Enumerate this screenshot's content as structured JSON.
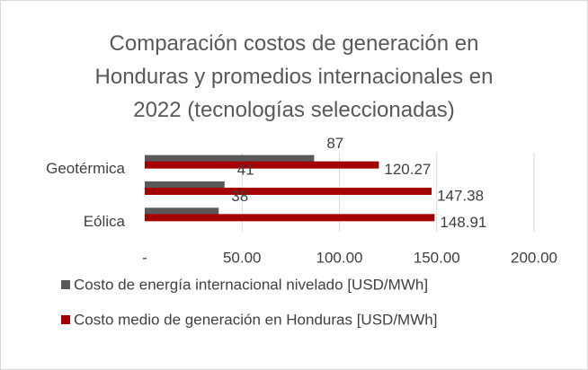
{
  "chart_data": {
    "type": "barh",
    "title": "Comparación costos de generación en Honduras y promedios internacionales en 2022 (tecnologías seleccionadas)",
    "categories": [
      "Geotérmica",
      null,
      "Eólica"
    ],
    "series": [
      {
        "name": "Costo de energía internacional nivelado [USD/MWh]",
        "color": "#595959",
        "values": [
          87,
          41,
          38
        ]
      },
      {
        "name": "Costo medio de generación en Honduras [USD/MWh]",
        "color": "#a50000",
        "values": [
          120.27,
          147.38,
          148.91
        ]
      }
    ],
    "xlim": [
      0,
      200
    ],
    "xticks": [
      {
        "value": 0,
        "label": "-"
      },
      {
        "value": 50,
        "label": "50.00"
      },
      {
        "value": 100,
        "label": "100.00"
      },
      {
        "value": 150,
        "label": "150.00"
      },
      {
        "value": 200,
        "label": "200.00"
      }
    ],
    "grid": true
  }
}
